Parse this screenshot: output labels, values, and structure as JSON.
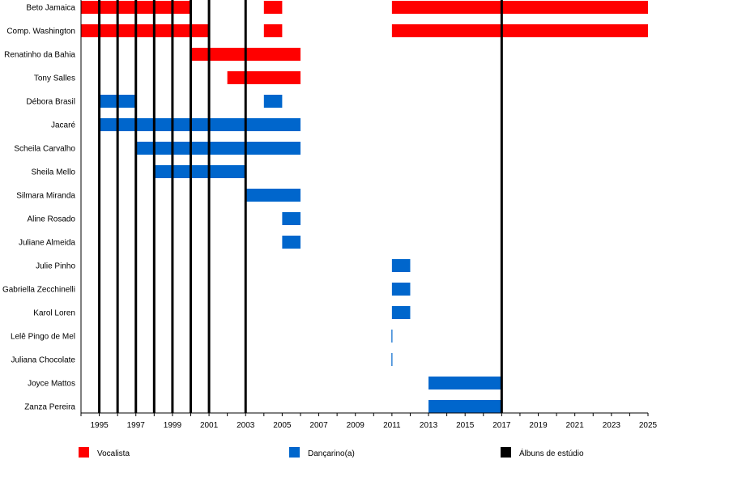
{
  "chart_data": {
    "type": "timeline",
    "xlim": [
      1994,
      2025
    ],
    "x_ticks": [
      1995,
      1997,
      1999,
      2001,
      2003,
      2005,
      2007,
      2009,
      2011,
      2013,
      2015,
      2017,
      2019,
      2021,
      2023,
      2025
    ],
    "colors": {
      "Vocalista": "#ff0000",
      "Dançarino(a)": "#0066cc",
      "Álbuns de estúdio": "#000000"
    },
    "members": [
      {
        "name": "Beto Jamaica",
        "role": "Vocalista",
        "periods": [
          [
            1994,
            2000
          ],
          [
            2004,
            2005
          ],
          [
            2011,
            2025
          ]
        ]
      },
      {
        "name": "Comp. Washington",
        "role": "Vocalista",
        "periods": [
          [
            1994,
            2001
          ],
          [
            2004,
            2005
          ],
          [
            2011,
            2025
          ]
        ]
      },
      {
        "name": "Renatinho da Bahia",
        "role": "Vocalista",
        "periods": [
          [
            2000,
            2006
          ]
        ]
      },
      {
        "name": "Tony Salles",
        "role": "Vocalista",
        "periods": [
          [
            2002,
            2006
          ]
        ]
      },
      {
        "name": "Débora Brasil",
        "role": "Dançarino(a)",
        "periods": [
          [
            1995,
            1997
          ],
          [
            2004,
            2005
          ]
        ]
      },
      {
        "name": "Jacaré",
        "role": "Dançarino(a)",
        "periods": [
          [
            1995,
            2006
          ]
        ]
      },
      {
        "name": "Scheila Carvalho",
        "role": "Dançarino(a)",
        "periods": [
          [
            1997,
            2006
          ]
        ]
      },
      {
        "name": "Sheila Mello",
        "role": "Dançarino(a)",
        "periods": [
          [
            1998,
            2003
          ]
        ]
      },
      {
        "name": "Silmara Miranda",
        "role": "Dançarino(a)",
        "periods": [
          [
            2003,
            2006
          ]
        ]
      },
      {
        "name": "Aline Rosado",
        "role": "Dançarino(a)",
        "periods": [
          [
            2005,
            2006
          ]
        ]
      },
      {
        "name": "Juliane Almeida",
        "role": "Dançarino(a)",
        "periods": [
          [
            2005,
            2006
          ]
        ]
      },
      {
        "name": "Julie Pinho",
        "role": "Dançarino(a)",
        "periods": [
          [
            2011,
            2012
          ]
        ]
      },
      {
        "name": "Gabriella Zecchinelli",
        "role": "Dançarino(a)",
        "periods": [
          [
            2011,
            2012
          ]
        ]
      },
      {
        "name": "Karol Loren",
        "role": "Dançarino(a)",
        "periods": [
          [
            2011,
            2012
          ]
        ]
      },
      {
        "name": "Lelê Pingo de Mel",
        "role": "Dançarino(a)",
        "periods": [
          [
            2011,
            2011.05
          ]
        ]
      },
      {
        "name": "Juliana Chocolate",
        "role": "Dançarino(a)",
        "periods": [
          [
            2011,
            2011.05
          ]
        ]
      },
      {
        "name": "Joyce Mattos",
        "role": "Dançarino(a)",
        "periods": [
          [
            2013,
            2017
          ]
        ]
      },
      {
        "name": "Zanza Pereira",
        "role": "Dançarino(a)",
        "periods": [
          [
            2013,
            2017
          ]
        ]
      }
    ],
    "albums": [
      1995,
      1996,
      1997,
      1998,
      1999,
      2000,
      2001,
      2003,
      2017
    ],
    "legend": [
      "Vocalista",
      "Dançarino(a)",
      "Álbuns de estúdio"
    ],
    "legend_position": "bottom"
  }
}
